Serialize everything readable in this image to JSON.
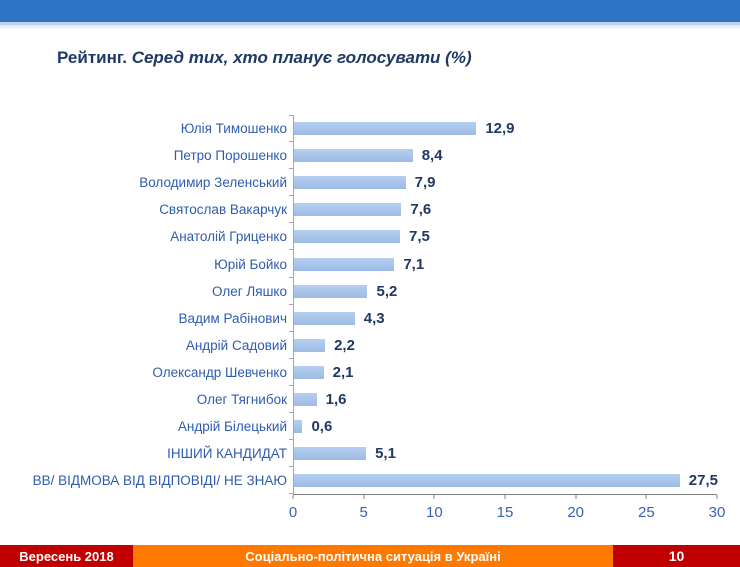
{
  "header": {
    "bar_color": "#2E74C4"
  },
  "title": {
    "bold": "Рейтинг.",
    "italic": " Серед тих, хто планує голосувати (%)"
  },
  "chart_data": {
    "type": "bar",
    "orientation": "horizontal",
    "title": "Рейтинг. Серед тих, хто планує голосувати (%)",
    "categories": [
      "Юлія Тимошенко",
      "Петро Порошенко",
      "Володимир Зеленський",
      "Святослав Вакарчук",
      "Анатолій Гриценко",
      "Юрій Бойко",
      "Олег Ляшко",
      "Вадим Рабінович",
      "Андрій Садовий",
      "Олександр Шевченко",
      "Олег Тягнибок",
      "Андрій Білецький",
      "ІНШИЙ КАНДИДАТ",
      "ВВ/ ВІДМОВА ВІД ВІДПОВІДІ/ НЕ ЗНАЮ"
    ],
    "values": [
      12.9,
      8.4,
      7.9,
      7.6,
      7.5,
      7.1,
      5.2,
      4.3,
      2.2,
      2.1,
      1.6,
      0.6,
      5.1,
      27.5
    ],
    "value_labels": [
      "12,9",
      "8,4",
      "7,9",
      "7,6",
      "7,5",
      "7,1",
      "5,2",
      "4,3",
      "2,2",
      "2,1",
      "1,6",
      "0,6",
      "5,1",
      "27,5"
    ],
    "xlabel": "",
    "ylabel": "",
    "xlim": [
      0,
      30
    ],
    "x_ticks": [
      0,
      5,
      10,
      15,
      20,
      25,
      30
    ],
    "x_tick_labels": [
      "0",
      "5",
      "10",
      "15",
      "20",
      "25",
      "30"
    ],
    "grid": false,
    "legend": false,
    "bar_color": "#A9C6EA",
    "label_color": "#2F5CB0",
    "value_color": "#1F3864"
  },
  "footer": {
    "date": "Вересень 2018",
    "title": "Соціально-політична ситуація в Україні",
    "page": "10"
  },
  "colors": {
    "top_bar": "#2E74C4",
    "footer_red": "#C00000",
    "footer_orange": "#FF7800",
    "axis_gray": "#808080"
  }
}
